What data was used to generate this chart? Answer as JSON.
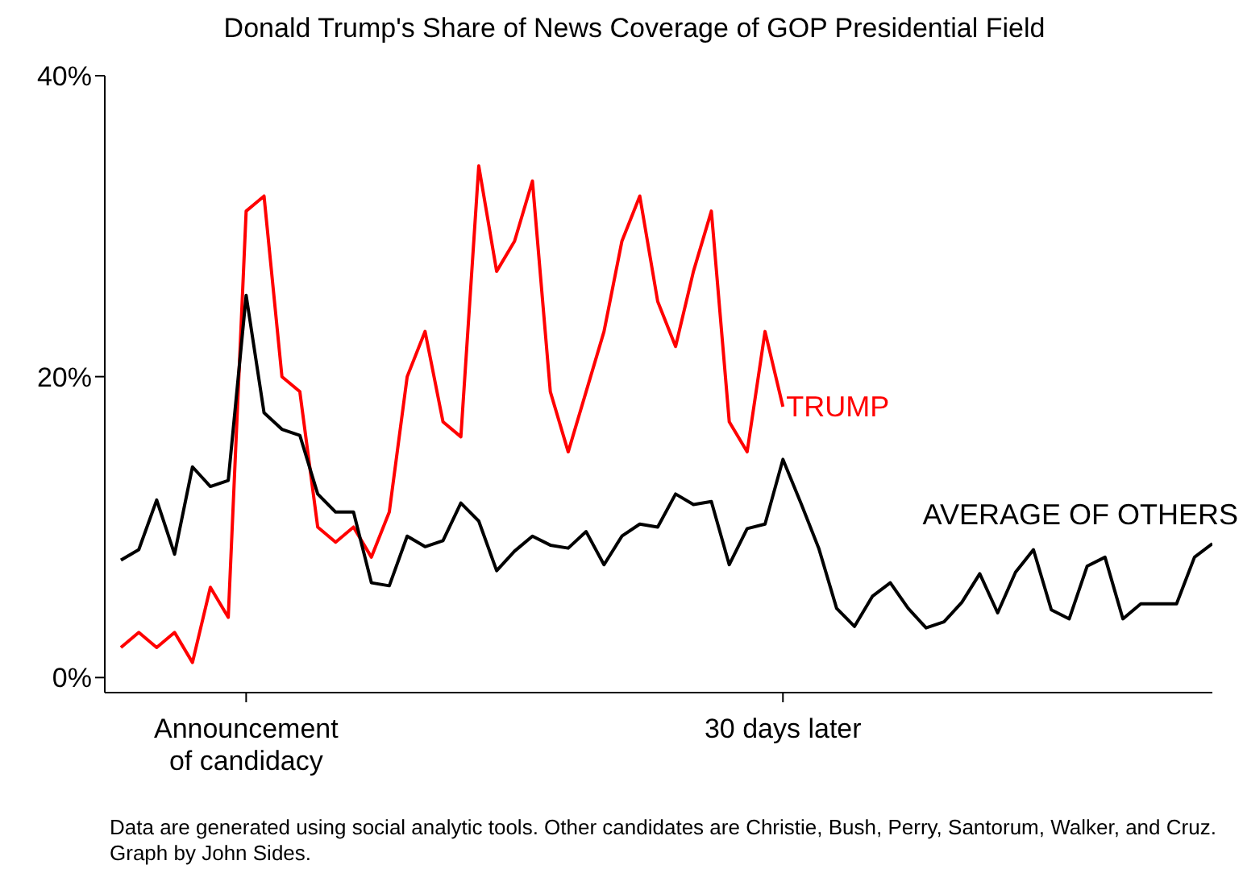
{
  "chart_data": {
    "type": "line",
    "title": "Donald Trump's Share of News Coverage of GOP Presidential Field",
    "categories": [
      null,
      null,
      null,
      null,
      null,
      null,
      null,
      "Announcement\nof candidacy",
      null,
      null,
      null,
      null,
      null,
      null,
      null,
      null,
      null,
      null,
      null,
      null,
      null,
      null,
      null,
      null,
      null,
      null,
      null,
      null,
      null,
      null,
      null,
      null,
      null,
      null,
      null,
      null,
      null,
      "30 days later",
      null,
      null,
      null,
      null,
      null,
      null,
      null,
      null,
      null,
      null,
      null,
      null,
      null,
      null,
      null,
      null,
      null,
      null,
      null,
      null,
      null,
      null,
      null,
      null
    ],
    "ylim": [
      -1,
      40
    ],
    "yticks": [
      {
        "value": 0,
        "label": "0%"
      },
      {
        "value": 20,
        "label": "20%"
      },
      {
        "value": 40,
        "label": "40%"
      }
    ],
    "grid": false,
    "legend": false,
    "marker": "none",
    "line_style": "solid",
    "series": [
      {
        "name": "TRUMP",
        "color": "#ff0000",
        "values": [
          2,
          3,
          2,
          3,
          1,
          6,
          4,
          31,
          32,
          20,
          19,
          10,
          9,
          10,
          8,
          11,
          20,
          23,
          17,
          16,
          34,
          27,
          29,
          33,
          19,
          15,
          19,
          23,
          29,
          32,
          25,
          22,
          27,
          31,
          17,
          15,
          23,
          18,
          null,
          null,
          null,
          null,
          null,
          null,
          null,
          null,
          null,
          null,
          null,
          null,
          null,
          null,
          null,
          null,
          null,
          null,
          null,
          null,
          null,
          null,
          null,
          null
        ]
      },
      {
        "name": "AVERAGE OF OTHERS",
        "color": "#000000",
        "values": [
          7.8,
          8.5,
          11.8,
          8.2,
          14,
          12.7,
          13.1,
          25.4,
          17.6,
          16.5,
          16.1,
          12.2,
          11,
          11,
          6.3,
          6.1,
          9.4,
          8.7,
          9.1,
          11.6,
          10.4,
          7.1,
          8.4,
          9.4,
          8.8,
          8.6,
          9.7,
          7.5,
          9.4,
          10.2,
          10,
          12.2,
          11.5,
          11.7,
          7.5,
          9.9,
          10.2,
          14.5,
          11.6,
          8.6,
          4.6,
          3.4,
          5.4,
          6.3,
          4.6,
          3.3,
          3.7,
          5,
          6.9,
          4.3,
          7,
          8.5,
          4.5,
          3.9,
          7.4,
          8,
          3.9,
          4.9,
          4.9,
          4.9,
          8,
          8.9
        ]
      }
    ],
    "annotations": [
      "Data are generated using social analytic tools. Other candidates are Christie, Bush, Perry, Santorum, Walker, and Cruz. Graph by John Sides."
    ]
  }
}
